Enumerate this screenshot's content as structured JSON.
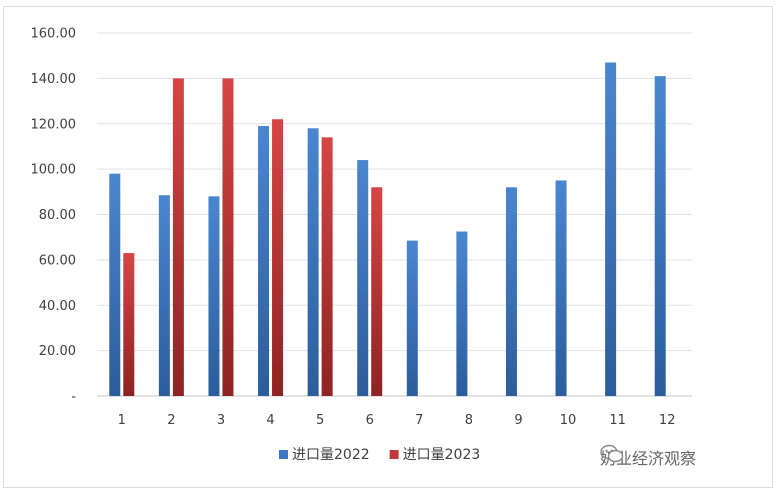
{
  "chart_data": {
    "type": "bar",
    "categories": [
      "1",
      "2",
      "3",
      "4",
      "5",
      "6",
      "7",
      "8",
      "9",
      "10",
      "11",
      "12"
    ],
    "series": [
      {
        "name": "进口量2022",
        "color": "#3a78c6",
        "values": [
          98,
          88.5,
          88,
          119,
          118,
          104,
          68.5,
          72.5,
          92,
          95,
          147,
          141
        ]
      },
      {
        "name": "进口量2023",
        "color": "#c0393a",
        "values": [
          63,
          140,
          140,
          122,
          114,
          92,
          null,
          null,
          null,
          null,
          null,
          null
        ]
      }
    ],
    "ylim": [
      0,
      160
    ],
    "yticks": [
      0,
      20,
      40,
      60,
      80,
      100,
      120,
      140,
      160
    ],
    "ytick_labels": [
      "-",
      "20.00",
      "40.00",
      "60.00",
      "80.00",
      "100.00",
      "120.00",
      "140.00",
      "160.00"
    ],
    "grid": true,
    "legend_position": "bottom"
  },
  "watermark": {
    "icon": "wechat-icon",
    "text": "奶业经济观察"
  }
}
